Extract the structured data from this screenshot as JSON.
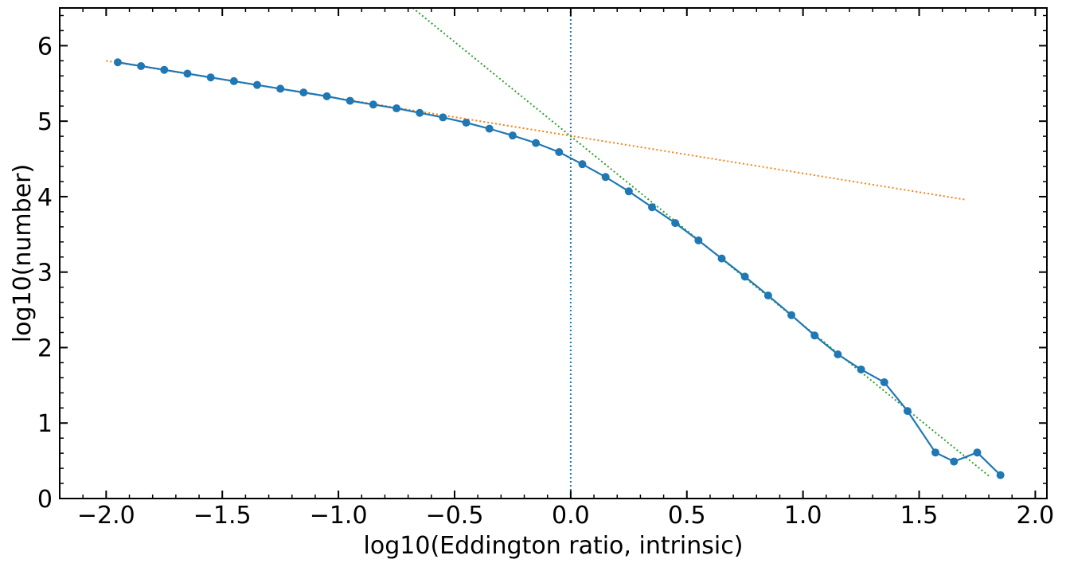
{
  "chart_data": {
    "type": "line",
    "title": "",
    "xlabel": "log10(Eddington ratio, intrinsic)",
    "ylabel": "log10(number)",
    "xlim": [
      -2.2,
      2.05
    ],
    "ylim": [
      0,
      6.5
    ],
    "grid": false,
    "x_ticks": [
      -2.0,
      -1.5,
      -1.0,
      -0.5,
      0.0,
      0.5,
      1.0,
      1.5,
      2.0
    ],
    "x_tick_labels": [
      "−2.0",
      "−1.5",
      "−1.0",
      "−0.5",
      "0.0",
      "0.5",
      "1.0",
      "1.5",
      "2.0"
    ],
    "y_ticks": [
      0,
      1,
      2,
      3,
      4,
      5,
      6
    ],
    "y_tick_labels": [
      "0",
      "1",
      "2",
      "3",
      "4",
      "5",
      "6"
    ],
    "colors": {
      "data": "#1f77b4",
      "fit_low": "#ff7f0e",
      "fit_high": "#2ca02c",
      "break": "#1f77b4"
    },
    "series": [
      {
        "style": "solid line with circle markers",
        "x": [
          -1.95,
          -1.85,
          -1.75,
          -1.65,
          -1.55,
          -1.45,
          -1.35,
          -1.25,
          -1.15,
          -1.05,
          -0.95,
          -0.85,
          -0.75,
          -0.65,
          -0.55,
          -0.45,
          -0.35,
          -0.25,
          -0.15,
          -0.05,
          0.05,
          0.15,
          0.25,
          0.35,
          0.45,
          0.55,
          0.65,
          0.75,
          0.85,
          0.95,
          1.05,
          1.15,
          1.25,
          1.35,
          1.45,
          1.57,
          1.65,
          1.75,
          1.85
        ],
        "y": [
          5.78,
          5.73,
          5.68,
          5.63,
          5.58,
          5.53,
          5.48,
          5.43,
          5.38,
          5.33,
          5.27,
          5.22,
          5.17,
          5.11,
          5.05,
          4.98,
          4.9,
          4.81,
          4.71,
          4.59,
          4.43,
          4.26,
          4.07,
          3.86,
          3.65,
          3.42,
          3.18,
          2.94,
          2.69,
          2.43,
          2.16,
          1.91,
          1.71,
          1.54,
          1.16,
          0.61,
          0.49,
          0.61,
          0.31
        ]
      },
      {
        "style": "dotted fit line",
        "x": [
          -2.0,
          1.7
        ],
        "y": [
          5.8,
          3.96
        ]
      },
      {
        "style": "dotted fit line",
        "x": [
          -0.68,
          1.8
        ],
        "y": [
          6.5,
          0.3
        ]
      },
      {
        "style": "dotted vertical line",
        "x": [
          0.0,
          0.0
        ],
        "y": [
          0,
          6.5
        ]
      }
    ]
  }
}
